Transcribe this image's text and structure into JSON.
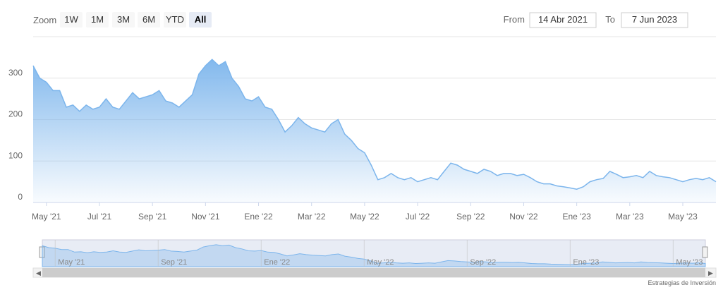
{
  "range_selector": {
    "zoom_label": "Zoom",
    "buttons": [
      "1W",
      "1M",
      "3M",
      "6M",
      "YTD",
      "All"
    ],
    "selected": 5,
    "from_label": "From",
    "from_value": "14 Abr 2021",
    "to_label": "To",
    "to_value": "7 Jun 2023"
  },
  "chart_data": {
    "type": "area",
    "color": "#7cb5ec",
    "categories": [
      null,
      null,
      "May '21",
      null,
      null,
      null,
      null,
      null,
      null,
      null,
      "Jul '21",
      null,
      null,
      null,
      null,
      null,
      null,
      null,
      "Sep '21",
      null,
      null,
      null,
      null,
      null,
      null,
      null,
      "Nov '21",
      null,
      null,
      null,
      null,
      null,
      null,
      null,
      "Ene '22",
      null,
      null,
      null,
      null,
      null,
      null,
      null,
      "Mar '22",
      null,
      null,
      null,
      null,
      null,
      null,
      null,
      "May '22",
      null,
      null,
      null,
      null,
      null,
      null,
      null,
      "Jul '22",
      null,
      null,
      null,
      null,
      null,
      null,
      null,
      "Sep '22",
      null,
      null,
      null,
      null,
      null,
      null,
      null,
      "Nov '22",
      null,
      null,
      null,
      null,
      null,
      null,
      null,
      "Ene '23",
      null,
      null,
      null,
      null,
      null,
      null,
      null,
      "Mar '23",
      null,
      null,
      null,
      null,
      null,
      null,
      null,
      "May '23",
      null,
      null,
      null,
      null,
      null
    ],
    "values": [
      330,
      300,
      290,
      270,
      270,
      230,
      235,
      220,
      235,
      225,
      230,
      250,
      230,
      225,
      245,
      265,
      250,
      255,
      260,
      270,
      245,
      240,
      230,
      245,
      260,
      310,
      330,
      345,
      330,
      340,
      300,
      280,
      250,
      245,
      255,
      230,
      225,
      200,
      170,
      185,
      205,
      190,
      180,
      175,
      170,
      190,
      200,
      165,
      150,
      130,
      120,
      90,
      55,
      60,
      70,
      60,
      55,
      60,
      50,
      55,
      60,
      55,
      75,
      95,
      90,
      80,
      75,
      70,
      80,
      75,
      65,
      70,
      70,
      65,
      68,
      60,
      50,
      45,
      45,
      40,
      38,
      35,
      32,
      38,
      50,
      55,
      58,
      75,
      68,
      60,
      62,
      65,
      60,
      75,
      65,
      62,
      60,
      55,
      50,
      55,
      58,
      55,
      60,
      50
    ],
    "ylim": [
      0,
      400
    ],
    "yticks": [
      0,
      100,
      200,
      300
    ],
    "grid": true
  },
  "credit": "Estrategias de Inversión"
}
